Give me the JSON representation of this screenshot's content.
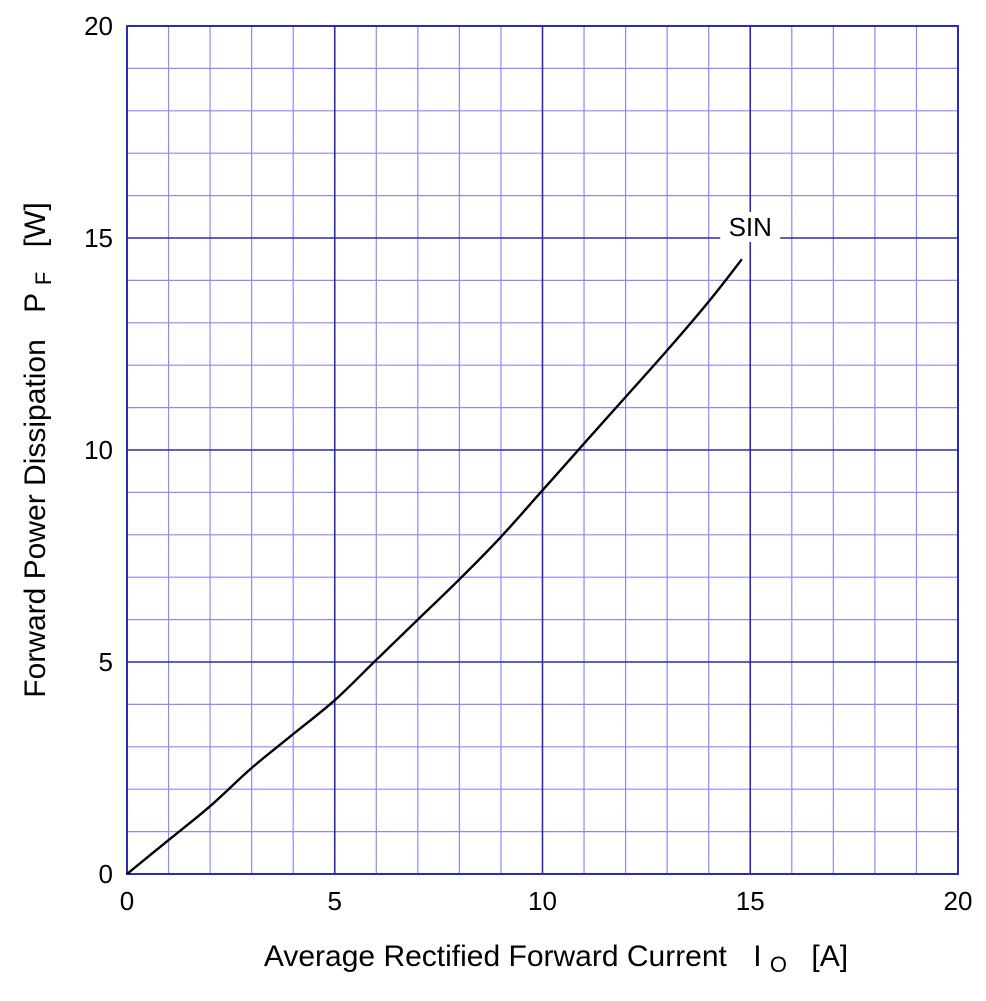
{
  "chart_data": {
    "type": "line",
    "xlabel": {
      "main": "Average Rectified Forward Current",
      "symbol": "I",
      "subscript": "O",
      "unit": "[A]"
    },
    "ylabel": {
      "main": "Forward Power Dissipation",
      "symbol": "P",
      "subscript": "F",
      "unit": "[W]"
    },
    "xlim": [
      0,
      20
    ],
    "ylim": [
      0,
      20
    ],
    "x_major_ticks": [
      0,
      5,
      10,
      15,
      20
    ],
    "y_major_ticks": [
      0,
      5,
      10,
      15,
      20
    ],
    "x_tick_labels": [
      "0",
      "5",
      "10",
      "15",
      "20"
    ],
    "y_tick_labels": [
      "0",
      "5",
      "10",
      "15",
      "20"
    ],
    "minor_step": 1,
    "grid": true,
    "colors": {
      "major_grid": "#2a2ab8",
      "minor_grid": "#8c8cf0",
      "curve": "#000000"
    },
    "series": [
      {
        "name": "SIN",
        "x": [
          0,
          1,
          2,
          3,
          4,
          5,
          6,
          7,
          8,
          9,
          10,
          11,
          12,
          13,
          14,
          14.8
        ],
        "y": [
          0,
          0.8,
          1.6,
          2.5,
          3.3,
          4.1,
          5.05,
          6.0,
          6.95,
          7.95,
          9.05,
          10.15,
          11.25,
          12.35,
          13.5,
          14.5
        ]
      }
    ],
    "annotations": [
      {
        "text": "SIN",
        "x": 15.0,
        "y": 15.0
      }
    ]
  }
}
